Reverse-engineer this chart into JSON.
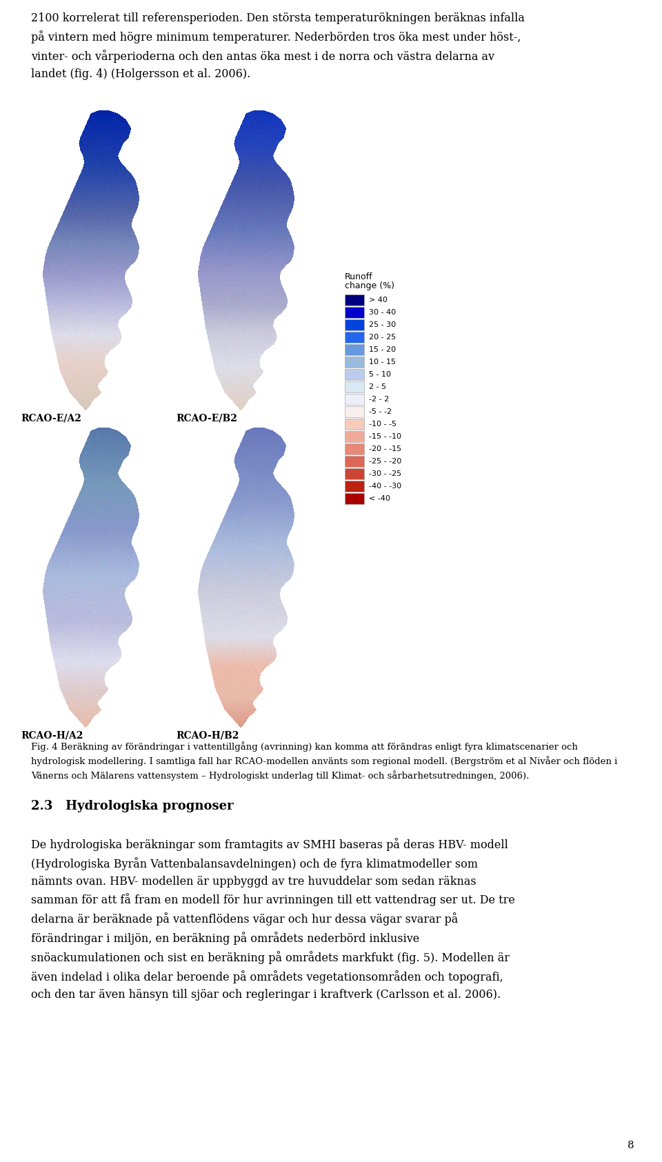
{
  "background_color": "#ffffff",
  "page_width": 9.6,
  "page_height": 16.85,
  "top_text_lines": [
    "2100 korrelerat till referensperioden. Den största temperaturökningen beräknas infalla",
    "på vintern med högre minimum temperaturer. Nederbörden tros öka mest under höst-,",
    "vinter- och vårperioderna och den antas öka mest i de norra och västra delarna av",
    "landet (fig. 4) (Holgersson et al. 2006)."
  ],
  "map_labels": [
    "RCAO-E/A2",
    "RCAO-E/B2",
    "RCAO-H/A2",
    "RCAO-H/B2"
  ],
  "legend_title_line1": "Runoff",
  "legend_title_line2": "change (%)",
  "legend_colors": [
    "#00007F",
    "#0000CC",
    "#0044DD",
    "#2266EE",
    "#6699DD",
    "#99BBDD",
    "#BBCCEE",
    "#D8E8F5",
    "#EEEEF8",
    "#F8EEEE",
    "#F5CCBB",
    "#F0AA99",
    "#E88877",
    "#DD6655",
    "#CC4433",
    "#BB2211",
    "#AA0000"
  ],
  "legend_labels": [
    "> 40",
    "30 - 40",
    "25 - 30",
    "20 - 25",
    "15 - 20",
    "10 - 15",
    "5 - 10",
    "2 - 5",
    "-2 - 2",
    "-5 - -2",
    "-10 - -5",
    "-15 - -10",
    "-20 - -15",
    "-25 - -20",
    "-30 - -25",
    "-40 - -30",
    "< -40"
  ],
  "caption_text_lines": [
    "Fig. 4 Beräkning av förändringar i vattentillgång (avrinning) kan komma att förändras enligt fyra klimatscenarier och",
    "hydrologisk modellering. I samtliga fall har RCAO-modellen använts som regional modell. (Bergström et al Nivåer och flöden i",
    "Vänerns och Mälarens vattensystem – Hydrologiskt underlag till Klimat- och sårbarhetsutredningen, 2006)."
  ],
  "section_title": "2.3   Hydrologiska prognoser",
  "body_text_lines": [
    "De hydrologiska beräkningar som framtagits av SMHI baseras på deras HBV- modell",
    "(Hydrologiska Byrån Vattenbalansavdelningen) och de fyra klimatmodeller som",
    "nämnts ovan. HBV- modellen är uppbyggd av tre huvuddelar som sedan räknas",
    "samman för att få fram en modell för hur avrinningen till ett vattendrag ser ut. De tre",
    "delarna är beräknade på vattenflödens vägar och hur dessa vägar svarar på",
    "förändringar i miljön, en beräkning på områdets nederbörd inklusive",
    "snöackumulationen och sist en beräkning på områdets markfukt (fig. 5). Modellen är",
    "även indelad i olika delar beroende på områdets vegetationsområden och topografi,",
    "och den tar även hänsyn till sjöar och regleringar i kraftverk (Carlsson et al. 2006)."
  ],
  "page_number": "8"
}
